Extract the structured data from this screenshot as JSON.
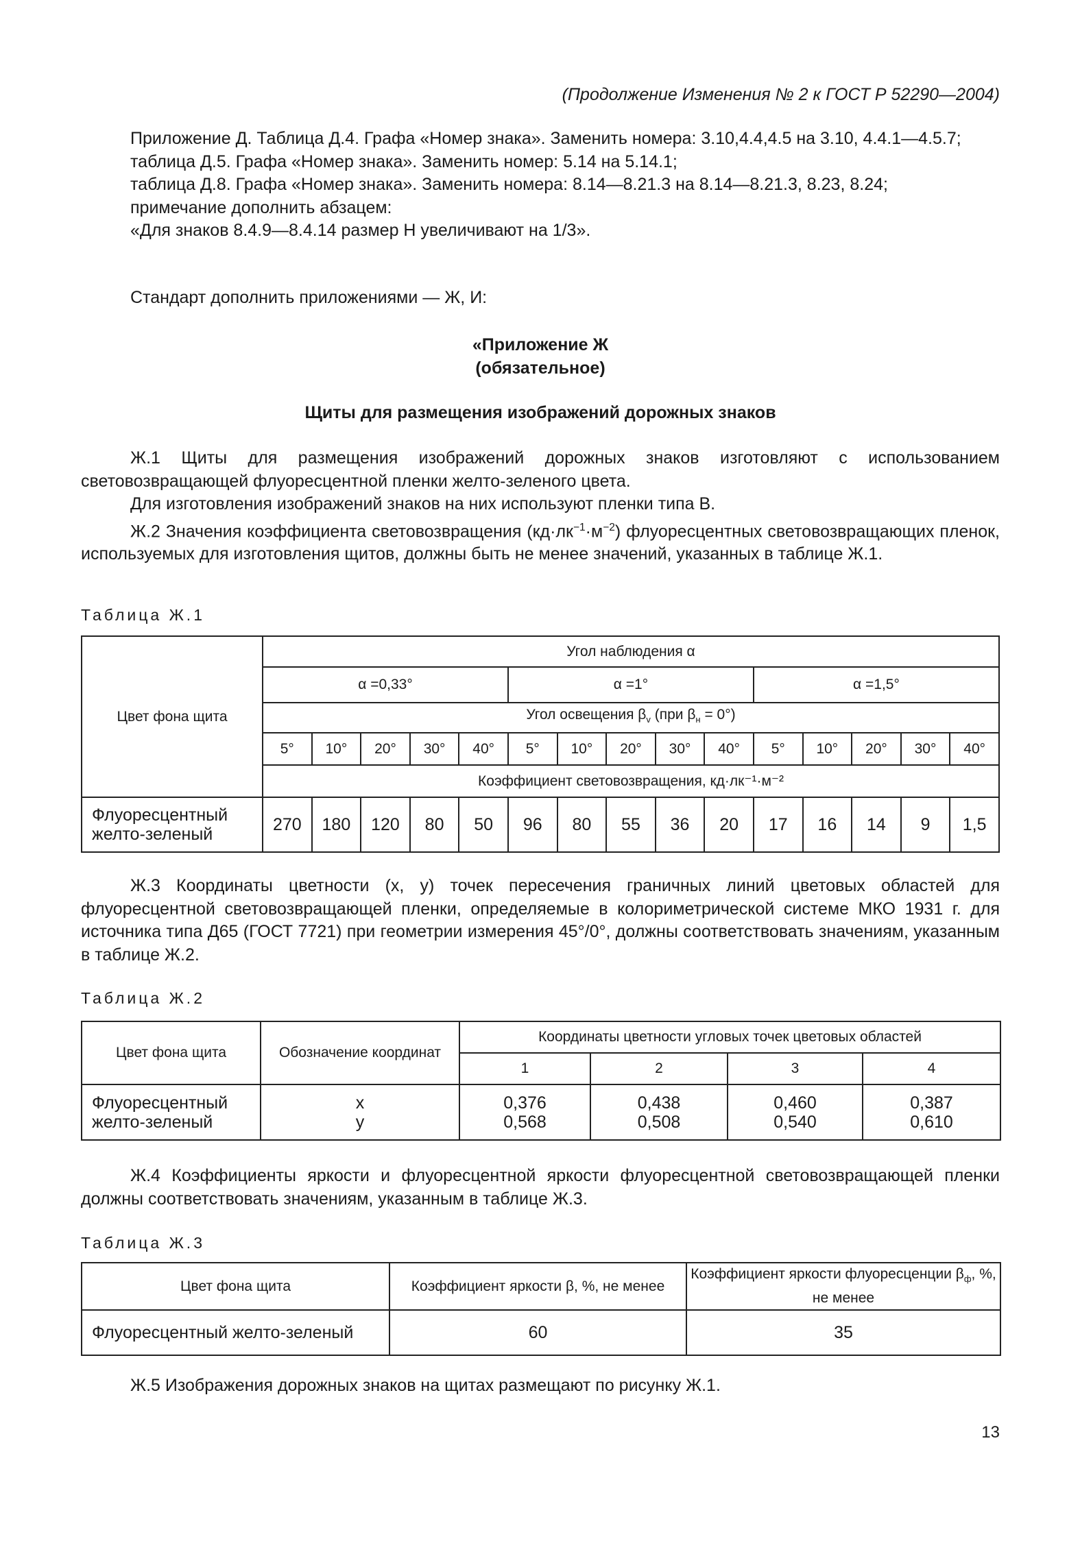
{
  "header": "(Продолжение Изменения № 2 к ГОСТ Р 52290—2004)",
  "intro": [
    {
      "text": "Приложение Д. Таблица Д.4. Графа «Номер знака». Заменить номера: 3.10,4.4,4.5 на 3.10, 4.4.1—4.5.7;",
      "indent": true
    },
    {
      "text": "таблица Д.5. Графа «Номер знака». Заменить номер: 5.14 на 5.14.1;",
      "indent": true
    },
    {
      "text": "таблица Д.8. Графа «Номер знака». Заменить номера: 8.14—8.21.3 на 8.14—8.21.3, 8.23, 8.24;",
      "indent": true
    },
    {
      "text": "примечание дополнить абзацем:",
      "indent": true
    },
    {
      "text": "«Для знаков 8.4.9—8.4.14 размер H увеличивают на 1/3».",
      "indent": true
    }
  ],
  "supplement": "Стандарт дополнить приложениями — Ж, И:",
  "appendix": {
    "title": "«Приложение Ж",
    "status": "(обязательное)",
    "heading": "Щиты для размещения изображений дорожных знаков"
  },
  "paragraphs": {
    "zh1": "Ж.1 Щиты для размещения изображений дорожных знаков изготовляют с использованием световозвращающей флуоресцентной пленки желто-зеленого цвета.",
    "zh1b": "Для изготовления изображений знаков на них используют пленки типа В.",
    "zh2_a": "Ж.2 Значения коэффициента световозвращения (кд·лк",
    "zh2_sup1": "−1",
    "zh2_b": "·м",
    "zh2_sup2": "−2",
    "zh2_c": ") флуоресцентных световозвращающих пленок, используемых для изготовления щитов, должны быть не менее значений, указанных в таблице Ж.1.",
    "zh3": "Ж.3 Координаты цветности (x, y) точек пересечения граничных линий цветовых областей для флуоресцентной световозвращающей пленки, определяемые в колориметрической системе МКО 1931 г. для источника типа Д65 (ГОСТ 7721) при геометрии измерения 45°/0°, должны соответствовать значениям, указанным в таблице Ж.2.",
    "zh4": "Ж.4 Коэффициенты яркости и флуоресцентной яркости флуоресцентной световозвращающей пленки должны соответствовать значениям, указанным в таблице Ж.3.",
    "zh5": "Ж.5 Изображения дорожных знаков на щитах размещают по рисунку Ж.1."
  },
  "table1": {
    "caption": "Таблица Ж.1",
    "row_header": "Цвет фона щита",
    "observation_angle": "Угол наблюдения α",
    "alphas": [
      "α =0,33°",
      "α =1°",
      "α =1,5°"
    ],
    "illumination_a": "Угол освещения β",
    "illumination_sub1": "v",
    "illumination_b": " (при β",
    "illumination_sub2": "н",
    "illumination_c": " = 0°)",
    "angles": [
      "5°",
      "10°",
      "20°",
      "30°",
      "40°",
      "5°",
      "10°",
      "20°",
      "30°",
      "40°",
      "5°",
      "10°",
      "20°",
      "30°",
      "40°"
    ],
    "coef_label": "Коэффициент световозвращения, кд·лк⁻¹·м⁻²",
    "row_label_1": "Флуоресцентный",
    "row_label_2": "желто-зеленый",
    "values": [
      "270",
      "180",
      "120",
      "80",
      "50",
      "96",
      "80",
      "55",
      "36",
      "20",
      "17",
      "16",
      "14",
      "9",
      "1,5"
    ]
  },
  "table2": {
    "caption": "Таблица Ж.2",
    "col1": "Цвет фона щита",
    "col2": "Обозначение координат",
    "col3": "Координаты цветности угловых точек цветовых областей",
    "points": [
      "1",
      "2",
      "3",
      "4"
    ],
    "row_label_1": "Флуоресцентный",
    "row_label_2": "желто-зеленый",
    "coord_x": "x",
    "coord_y": "y",
    "x": [
      "0,376",
      "0,438",
      "0,460",
      "0,387"
    ],
    "y": [
      "0,568",
      "0,508",
      "0,540",
      "0,610"
    ]
  },
  "table3": {
    "caption": "Таблица Ж.3",
    "col1": "Цвет фона щита",
    "col2": "Коэффициент яркости β, %, не менее",
    "col3_a": "Коэффициент яркости флуоресценции β",
    "col3_sub": "ф",
    "col3_b": ", %, не менее",
    "row_label": "Флуоресцентный желто-зеленый",
    "v1": "60",
    "v2": "35"
  },
  "page_number": "13"
}
